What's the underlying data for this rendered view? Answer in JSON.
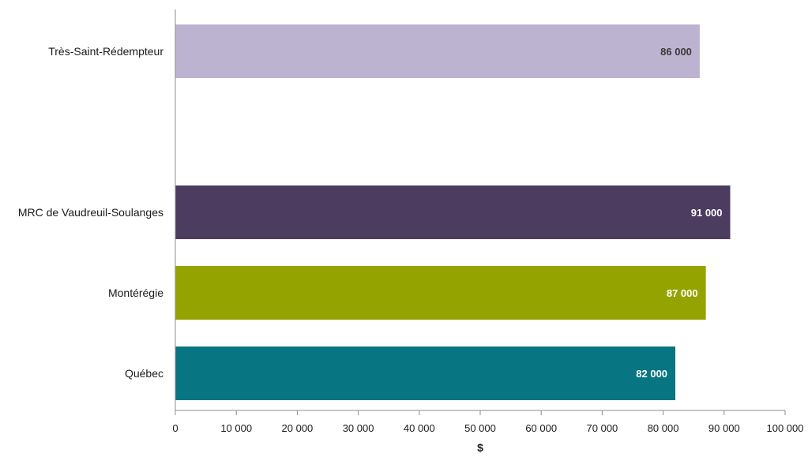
{
  "chart_data": {
    "type": "bar",
    "orientation": "horizontal",
    "categories": [
      "Très-Saint-Rédempteur",
      "",
      "MRC de Vaudreuil-Soulanges",
      "Montérégie",
      "Québec"
    ],
    "values": [
      86000,
      null,
      91000,
      87000,
      82000
    ],
    "data_labels": [
      "86 000",
      "",
      "91 000",
      "87 000",
      "82 000"
    ],
    "bar_colors": [
      "#bcb3d1",
      null,
      "#4b3c60",
      "#95a300",
      "#087582"
    ],
    "data_label_colors": [
      "#3a3a3a",
      null,
      "#ffffff",
      "#ffffff",
      "#ffffff"
    ],
    "xlabel": "$",
    "ylabel": "",
    "title": "",
    "xlim": [
      0,
      100000
    ],
    "xticks": [
      0,
      10000,
      20000,
      30000,
      40000,
      50000,
      60000,
      70000,
      80000,
      90000,
      100000
    ],
    "xtick_labels": [
      "0",
      "10 000",
      "20 000",
      "30 000",
      "40 000",
      "50 000",
      "60 000",
      "70 000",
      "80 000",
      "90 000",
      "100 000"
    ],
    "grid": false,
    "legend": "none"
  }
}
